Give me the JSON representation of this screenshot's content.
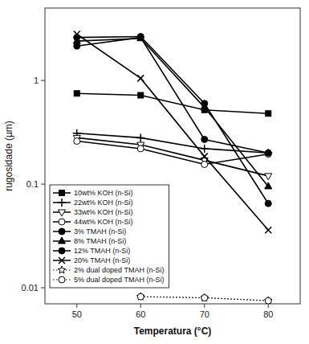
{
  "chart_data": {
    "type": "line",
    "xlabel": "Temperatura (°C)",
    "ylabel": "rugosidade (µm)",
    "x": [
      50,
      60,
      70,
      80
    ],
    "xlim": [
      45,
      85
    ],
    "xticks": [
      50,
      60,
      70,
      80
    ],
    "ylim": [
      0.007,
      5
    ],
    "yticks": [
      0.01,
      0.1,
      1
    ],
    "log": "y",
    "grid": false,
    "legend": "lower left",
    "series": [
      {
        "name": "10wt% KOH (n-Si)",
        "color": "black",
        "marker": "square",
        "line_style": "solid",
        "values": [
          0.75,
          0.72,
          0.52,
          0.48
        ]
      },
      {
        "name": "22wt% KOH (n-Si)",
        "color": "black",
        "marker": "plus",
        "line_style": "solid",
        "values": [
          0.31,
          0.28,
          0.22,
          0.2
        ]
      },
      {
        "name": "33wt% KOH (n-Si)",
        "color": "black",
        "marker": "triangle-down-open",
        "line_style": "solid",
        "values": [
          0.28,
          0.24,
          0.17,
          0.12
        ]
      },
      {
        "name": "44wt% KOH (n-Si)",
        "color": "black",
        "marker": "circle-open",
        "line_style": "solid",
        "values": [
          0.26,
          0.22,
          0.155,
          0.195
        ]
      },
      {
        "name": "3% TMAH (n-Si)",
        "color": "black",
        "marker": "circle",
        "line_style": "solid",
        "values": [
          2.6,
          2.65,
          0.6,
          0.065
        ]
      },
      {
        "name": "8% TMAH (n-Si)",
        "color": "black",
        "marker": "triangle-up",
        "line_style": "solid",
        "values": [
          2.4,
          2.55,
          0.55,
          0.095
        ]
      },
      {
        "name": "12% TMAH (n-Si)",
        "color": "black",
        "marker": "circle",
        "line_style": "solid",
        "values": [
          2.15,
          2.6,
          0.27,
          0.2
        ]
      },
      {
        "name": "20% TMAH (n-Si)",
        "color": "black",
        "marker": "x",
        "line_style": "solid",
        "values": [
          2.8,
          1.05,
          0.185,
          0.036
        ]
      },
      {
        "name": "2% dual doped TMAH (n-Si)",
        "color": "black",
        "marker": "star-open",
        "line_style": "dotted",
        "values": [
          null,
          0.0082,
          0.008,
          0.0075
        ]
      },
      {
        "name": "5% dual doped TMAH (n-Si)",
        "color": "black",
        "marker": "circle-open",
        "line_style": "dotted",
        "values": [
          null,
          0.0082,
          0.008,
          0.0075
        ]
      }
    ]
  }
}
